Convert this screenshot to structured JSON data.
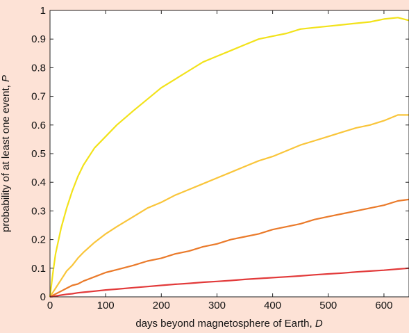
{
  "chart_data": {
    "type": "line",
    "title": "",
    "xlabel": "days beyond magnetosphere of Earth, ",
    "xlabel_var": "D",
    "ylabel": "probability of at least one event, ",
    "ylabel_var": "P",
    "xlim": [
      0,
      645
    ],
    "ylim": [
      0,
      1
    ],
    "xticks": [
      0,
      100,
      200,
      300,
      400,
      500,
      600
    ],
    "yticks": [
      0,
      0.1,
      0.2,
      0.3,
      0.4,
      0.5,
      0.6,
      0.7,
      0.8,
      0.9,
      1
    ],
    "ytick_labels": [
      "0",
      "0.1",
      "0.2",
      "0.3",
      "0.4",
      "0.5",
      "0.6",
      "0.7",
      "0.8",
      "0.9",
      "1"
    ],
    "grid": false,
    "legend": "none",
    "x": [
      0,
      5,
      10,
      20,
      30,
      40,
      50,
      60,
      80,
      100,
      120,
      150,
      175,
      200,
      225,
      250,
      275,
      300,
      325,
      350,
      375,
      400,
      425,
      450,
      475,
      500,
      525,
      550,
      575,
      600,
      625,
      645
    ],
    "series": [
      {
        "color": "#f2e21a",
        "values": [
          0,
          0.08,
          0.15,
          0.24,
          0.31,
          0.37,
          0.42,
          0.46,
          0.52,
          0.56,
          0.6,
          0.65,
          0.69,
          0.73,
          0.76,
          0.79,
          0.82,
          0.84,
          0.86,
          0.88,
          0.9,
          0.91,
          0.92,
          0.935,
          0.94,
          0.945,
          0.95,
          0.955,
          0.96,
          0.97,
          0.975,
          0.965
        ]
      },
      {
        "color": "#f9c53a",
        "values": [
          0,
          0.015,
          0.03,
          0.06,
          0.09,
          0.11,
          0.135,
          0.155,
          0.19,
          0.22,
          0.245,
          0.28,
          0.31,
          0.33,
          0.355,
          0.375,
          0.395,
          0.415,
          0.435,
          0.455,
          0.475,
          0.49,
          0.51,
          0.53,
          0.545,
          0.56,
          0.575,
          0.59,
          0.6,
          0.615,
          0.635,
          0.635
        ]
      },
      {
        "color": "#ea7a2a",
        "values": [
          0,
          0.005,
          0.01,
          0.02,
          0.03,
          0.04,
          0.045,
          0.055,
          0.07,
          0.085,
          0.095,
          0.11,
          0.125,
          0.135,
          0.15,
          0.16,
          0.175,
          0.185,
          0.2,
          0.21,
          0.22,
          0.235,
          0.245,
          0.255,
          0.27,
          0.28,
          0.29,
          0.3,
          0.31,
          0.32,
          0.335,
          0.34
        ]
      },
      {
        "color": "#e23a3a",
        "values": [
          0,
          0.001,
          0.003,
          0.006,
          0.009,
          0.011,
          0.014,
          0.016,
          0.02,
          0.024,
          0.027,
          0.032,
          0.036,
          0.04,
          0.044,
          0.047,
          0.051,
          0.054,
          0.057,
          0.061,
          0.064,
          0.067,
          0.07,
          0.073,
          0.077,
          0.08,
          0.083,
          0.087,
          0.09,
          0.093,
          0.097,
          0.1
        ]
      }
    ]
  }
}
